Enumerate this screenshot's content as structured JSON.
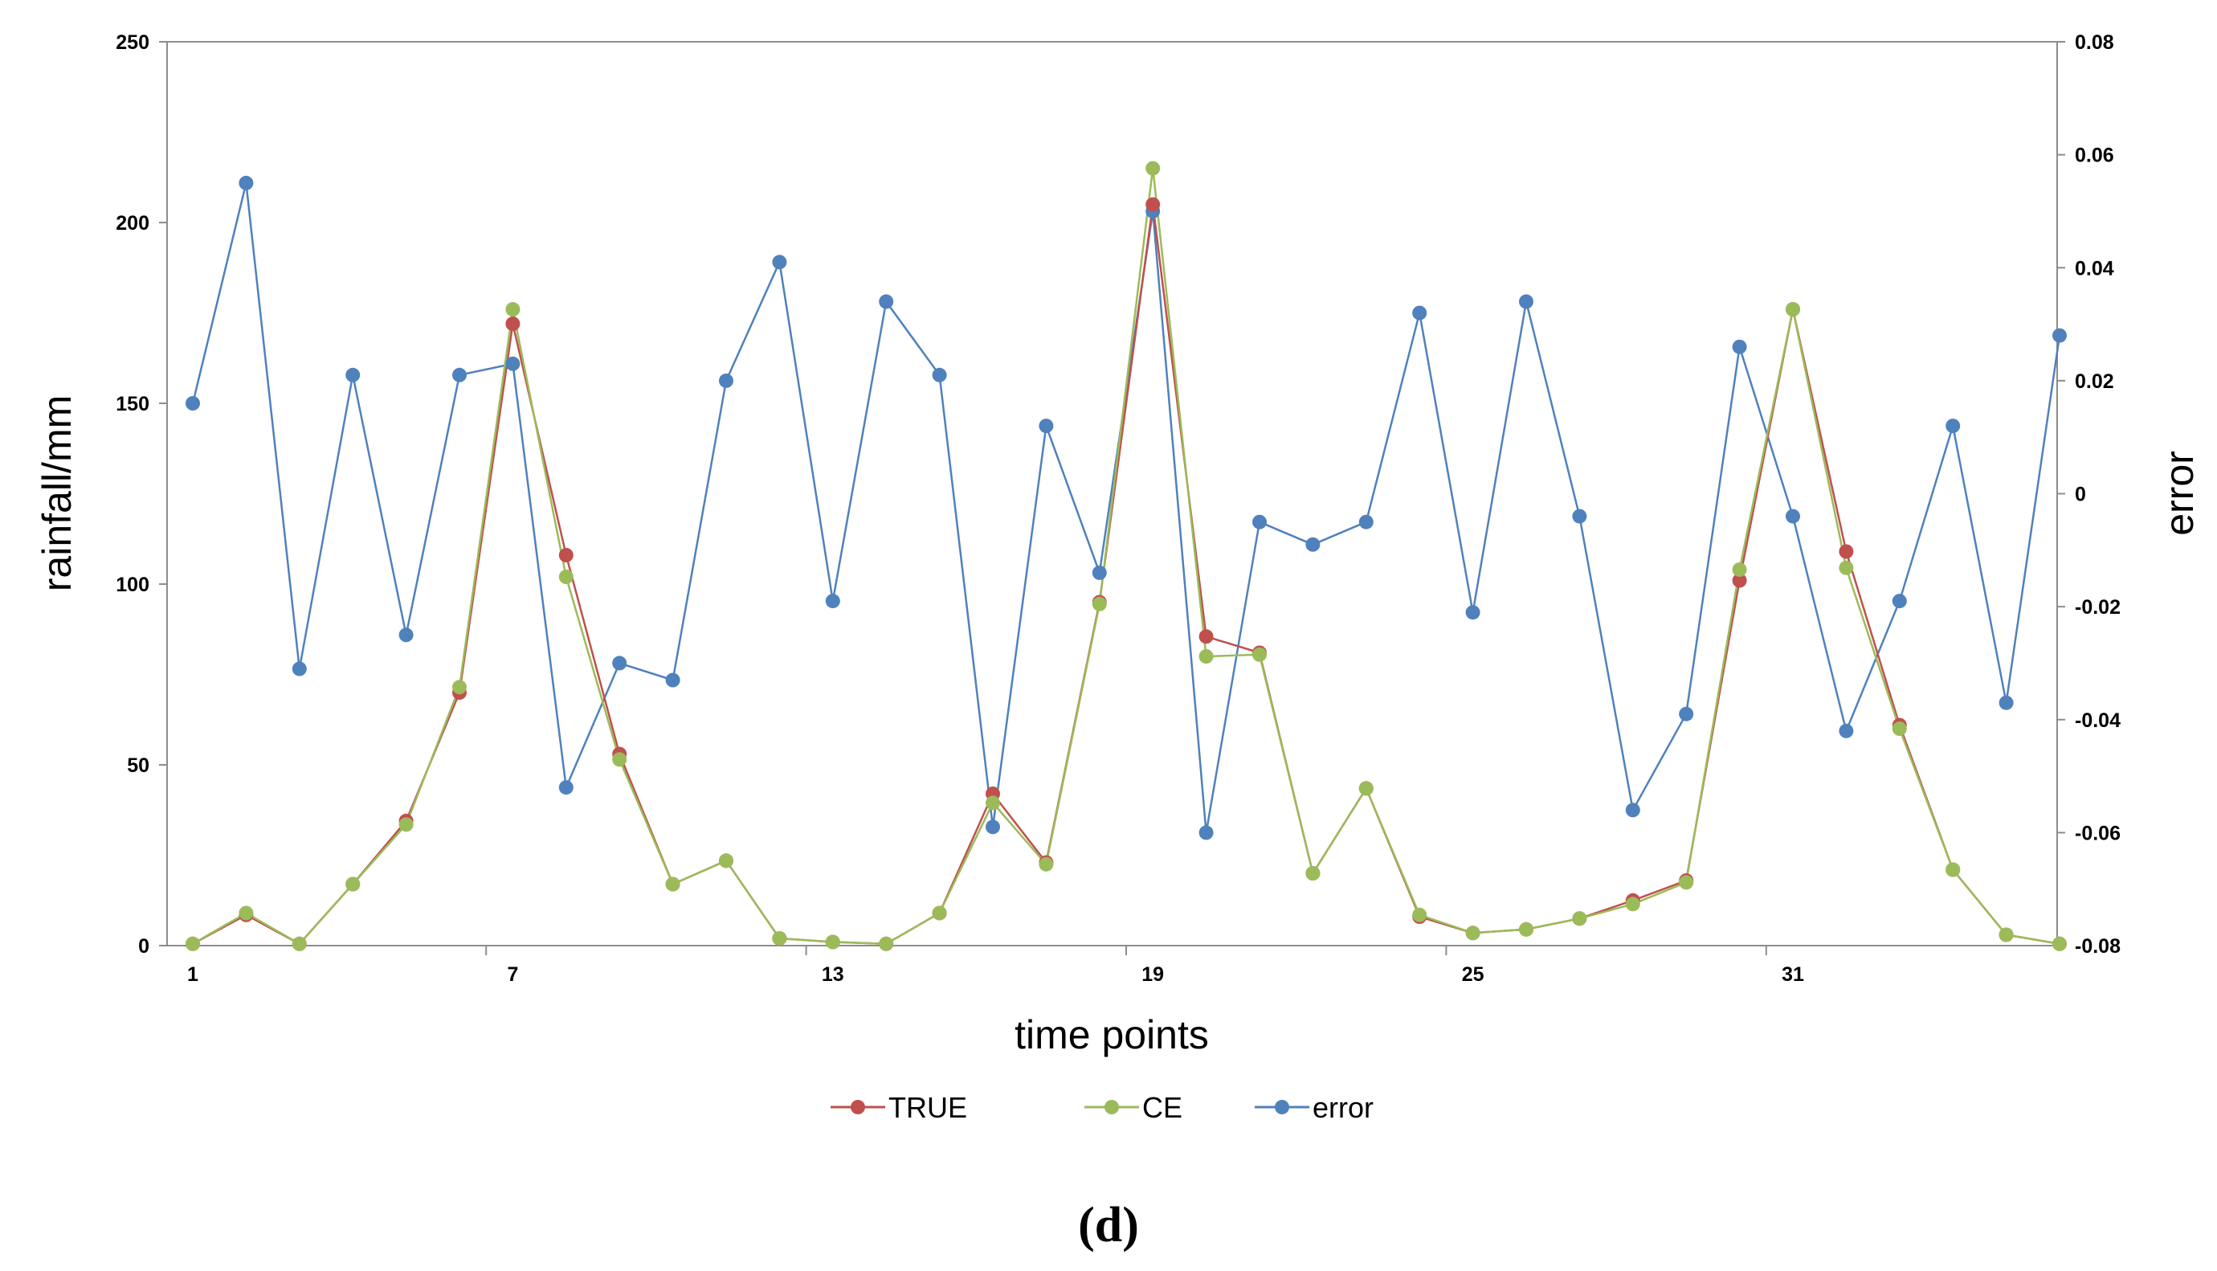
{
  "chart_data": {
    "type": "line",
    "title": "",
    "xlabel": "time points",
    "ylabel": "rainfall/mm",
    "y2label": "error",
    "panel_label": "(d)",
    "x": [
      1,
      2,
      3,
      4,
      5,
      6,
      7,
      8,
      9,
      10,
      11,
      12,
      13,
      14,
      15,
      16,
      17,
      18,
      19,
      20,
      21,
      22,
      23,
      24,
      25,
      26,
      27,
      28,
      29,
      30,
      31,
      32,
      33,
      34,
      35,
      36
    ],
    "xticks": [
      "1",
      "7",
      "13",
      "19",
      "25",
      "31"
    ],
    "ylim": [
      0,
      250
    ],
    "yticks": [
      "0",
      "50",
      "100",
      "150",
      "200",
      "250"
    ],
    "y2lim": [
      -0.08,
      0.08
    ],
    "y2ticks": [
      "-0.08",
      "-0.06",
      "-0.04",
      "-0.02",
      "0",
      "0.02",
      "0.04",
      "0.06",
      "0.08"
    ],
    "grid": false,
    "legend_position": "bottom-center",
    "series": [
      {
        "name": "TRUE",
        "axis": "left",
        "color": "#c0504d",
        "values": [
          0.5,
          8.5,
          0.5,
          17,
          34.5,
          70,
          172,
          108,
          53,
          17,
          23.5,
          2,
          1,
          0.5,
          9,
          42,
          23,
          95,
          205,
          85.5,
          81,
          20,
          43.5,
          8,
          3.5,
          4.5,
          7.5,
          12.5,
          18,
          101,
          176,
          109,
          61,
          21,
          3,
          0.5
        ]
      },
      {
        "name": "CE",
        "axis": "left",
        "color": "#9bbb59",
        "values": [
          0.5,
          9,
          0.5,
          17,
          33.5,
          71.5,
          176,
          102,
          51.5,
          17,
          23.5,
          2,
          1,
          0.5,
          9,
          39.5,
          22.5,
          94.5,
          215,
          80,
          80.5,
          20,
          43.5,
          8.5,
          3.5,
          4.5,
          7.5,
          11.5,
          17.5,
          104,
          176,
          104.5,
          60,
          21,
          3,
          0.5
        ]
      },
      {
        "name": "error",
        "axis": "right",
        "color": "#4f81bd",
        "values": [
          0.016,
          0.055,
          -0.031,
          0.021,
          -0.025,
          0.021,
          0.023,
          -0.052,
          -0.03,
          -0.033,
          0.02,
          0.041,
          -0.019,
          0.034,
          0.021,
          -0.059,
          0.012,
          -0.014,
          0.05,
          -0.06,
          -0.005,
          -0.009,
          -0.005,
          0.032,
          -0.021,
          0.034,
          -0.004,
          -0.056,
          -0.039,
          0.026,
          -0.004,
          -0.042,
          -0.019,
          0.012,
          -0.037,
          0.028
        ]
      }
    ]
  }
}
